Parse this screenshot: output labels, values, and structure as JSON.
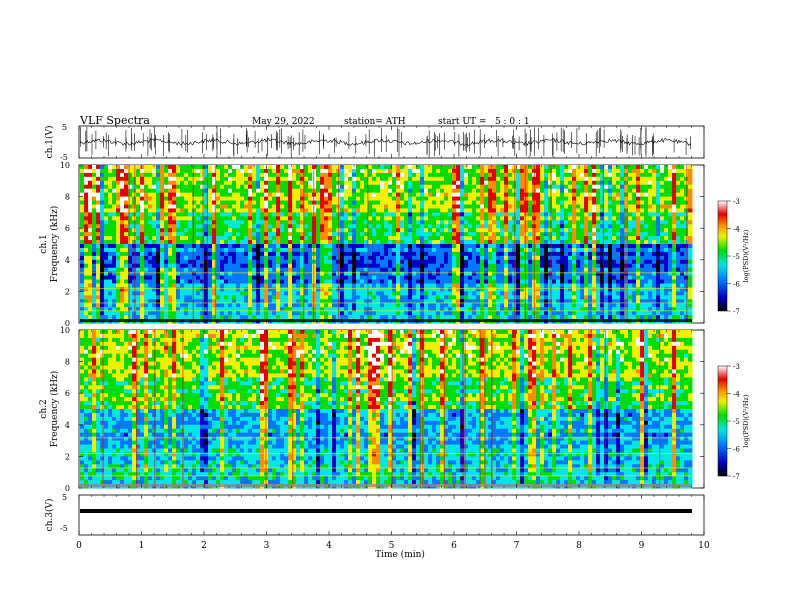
{
  "header": {
    "title": "VLF Spectra",
    "date": "May 29, 2022",
    "station": "station= ATH",
    "start": "start UT =   5 : 0 : 1"
  },
  "chart_data": [
    {
      "type": "line",
      "name": "ch1-waveform",
      "ylabel": "ch.1(V)",
      "ylim": [
        -5,
        5
      ],
      "yticks": [
        "5",
        "-5"
      ],
      "xlim": [
        0,
        10
      ],
      "description_values": {
        "baseline_V": 0,
        "spike_range_V": [
          -5,
          5
        ]
      }
    },
    {
      "type": "heatmap",
      "name": "ch1-spectrogram",
      "ylabel": "Frequency (kHz)",
      "channel_label": "ch.1",
      "ylim": [
        0,
        10
      ],
      "yticks": [
        "0",
        "2",
        "4",
        "6",
        "8",
        "10"
      ],
      "xlim": [
        0,
        9.8
      ],
      "colorbar": {
        "label": "log(PSD)(V²/Hz)",
        "ticks": [
          "-3",
          "-4",
          "-5",
          "-6",
          "-7"
        ],
        "range": [
          -7,
          -3
        ]
      }
    },
    {
      "type": "heatmap",
      "name": "ch2-spectrogram",
      "ylabel": "Frequency (kHz)",
      "channel_label": "ch.2",
      "ylim": [
        0,
        10
      ],
      "yticks": [
        "0",
        "2",
        "4",
        "6",
        "8",
        "10"
      ],
      "xlim": [
        0,
        9.8
      ],
      "colorbar": {
        "label": "log(PSD)(V²/Hz)",
        "ticks": [
          "-3",
          "-4",
          "-5",
          "-6",
          "-7"
        ],
        "range": [
          -7,
          -3
        ]
      }
    },
    {
      "type": "line",
      "name": "ch3-waveform",
      "ylabel": "ch.3(V)",
      "ylim": [
        -5,
        5
      ],
      "yticks": [
        "5",
        "-5"
      ],
      "xlim": [
        0,
        10
      ],
      "description_values": {
        "baseline_V": 0
      }
    }
  ],
  "xaxis": {
    "label": "Time (min)",
    "ticks": [
      "0",
      "1",
      "2",
      "3",
      "4",
      "5",
      "6",
      "7",
      "8",
      "9",
      "10"
    ]
  },
  "colors": {
    "scale": [
      "#000000",
      "#0000c8",
      "#0078ff",
      "#00e6e6",
      "#00dc00",
      "#f0f000",
      "#ff8c00",
      "#e60000",
      "#ffffff"
    ]
  }
}
